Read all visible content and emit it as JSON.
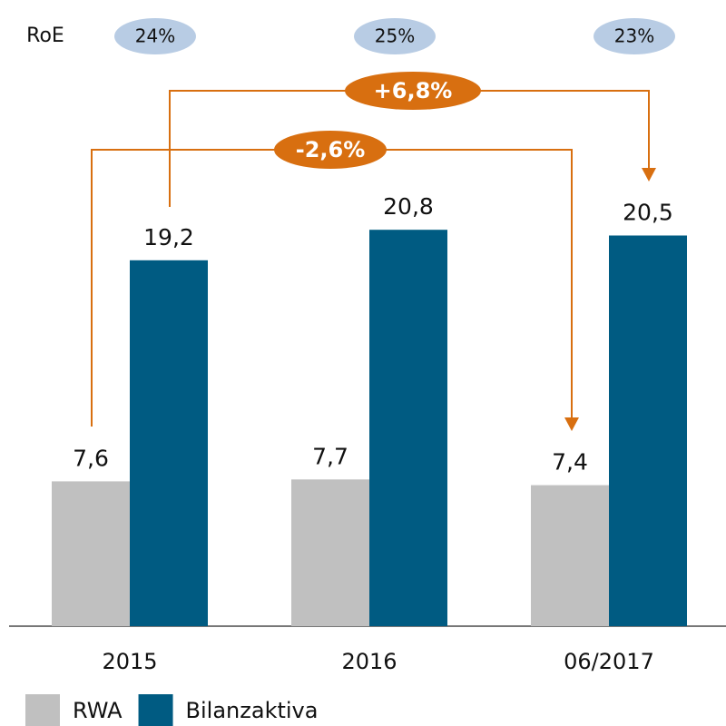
{
  "chart_data": {
    "type": "bar",
    "categories": [
      "2015",
      "2016",
      "06/2017"
    ],
    "series": [
      {
        "name": "RWA",
        "color": "#c0c0c0",
        "values": [
          7.6,
          7.7,
          7.4
        ],
        "value_labels": [
          "7,6",
          "7,7",
          "7,4"
        ]
      },
      {
        "name": "Bilanzaktiva",
        "color": "#005b82",
        "values": [
          19.2,
          20.8,
          20.5
        ],
        "value_labels": [
          "19,2",
          "20,8",
          "20,5"
        ]
      }
    ],
    "ylim": [
      0,
      32
    ],
    "roe": {
      "label": "RoE",
      "values": [
        24,
        25,
        23
      ],
      "value_labels": [
        "24%",
        "25%",
        "23%"
      ],
      "color": "#b8cce4"
    },
    "annotations": [
      {
        "text": "+6,8%",
        "color": "#d86f10"
      },
      {
        "text": "-2,6%",
        "color": "#d86f10"
      }
    ],
    "legend": "bottom-left"
  }
}
